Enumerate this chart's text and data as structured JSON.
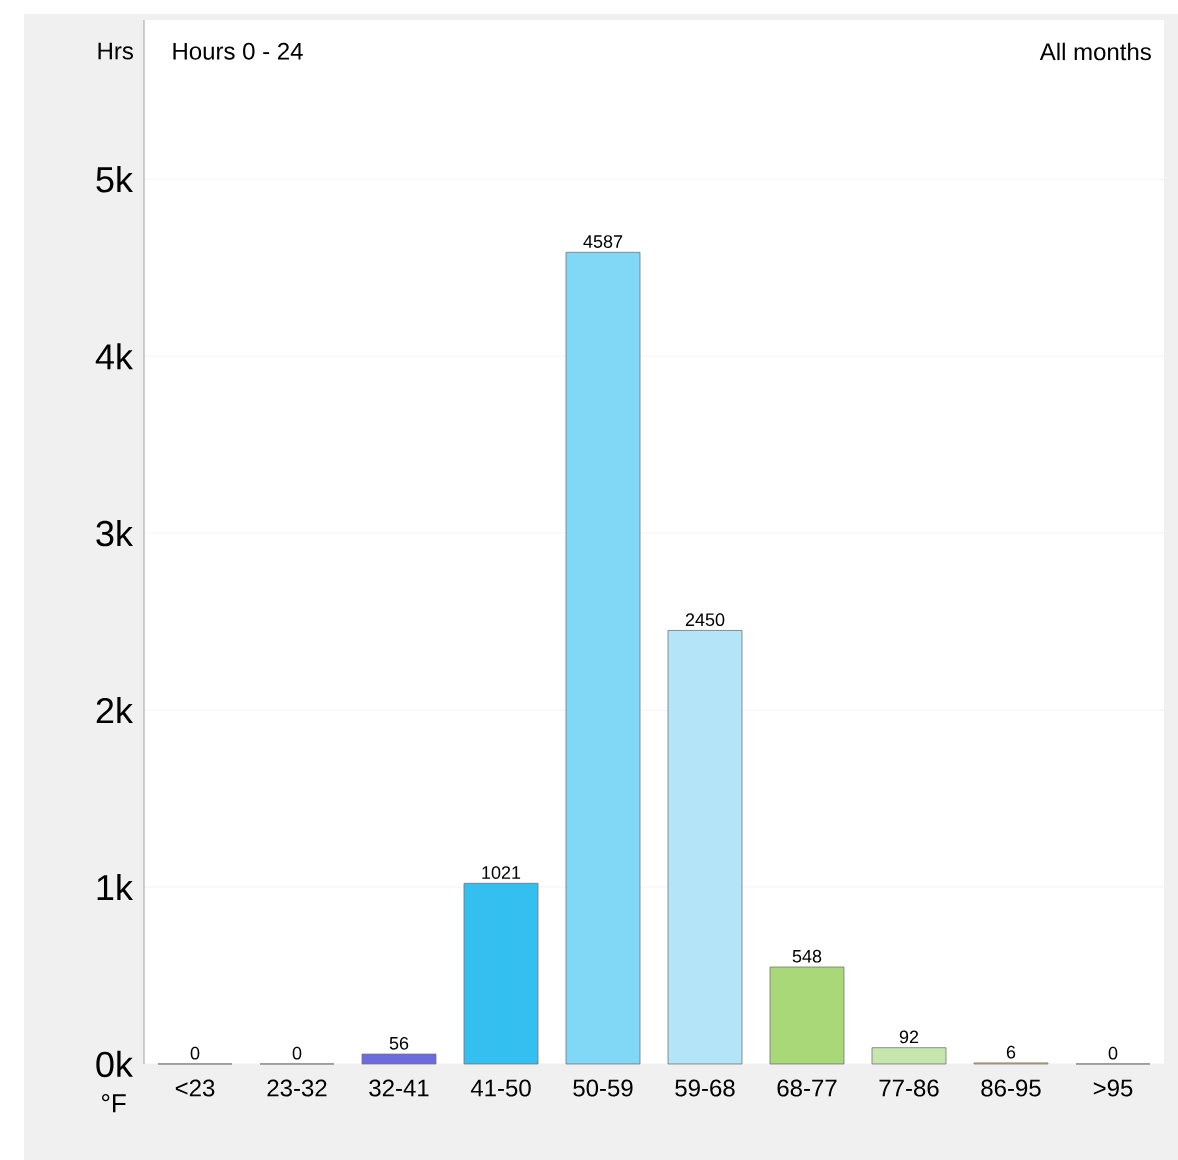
{
  "chart_data": {
    "type": "bar",
    "title": "Hours 0 - 24",
    "subtitle": "All months",
    "ylabel": "Hrs",
    "xlabel": "°F",
    "categories": [
      "<23",
      "23-32",
      "32-41",
      "41-50",
      "50-59",
      "59-68",
      "68-77",
      "77-86",
      "86-95",
      ">95"
    ],
    "values": [
      0,
      0,
      56,
      1021,
      4587,
      2450,
      548,
      92,
      6,
      0
    ],
    "colors": [
      "#5c5cd6",
      "#5c5cd6",
      "#6b6be0",
      "#33bff0",
      "#80d8f6",
      "#b3e4f8",
      "#a8d878",
      "#c6e6ae",
      "#f0cc66",
      "#f0a060"
    ],
    "data_labels": true,
    "grid": "y",
    "ylim": [
      0,
      5900
    ],
    "yticks": [
      {
        "value": 0,
        "label": "0k"
      },
      {
        "value": 1000,
        "label": "1k"
      },
      {
        "value": 2000,
        "label": "2k"
      },
      {
        "value": 3000,
        "label": "3k"
      },
      {
        "value": 4000,
        "label": "4k"
      },
      {
        "value": 5000,
        "label": "5k"
      }
    ]
  }
}
